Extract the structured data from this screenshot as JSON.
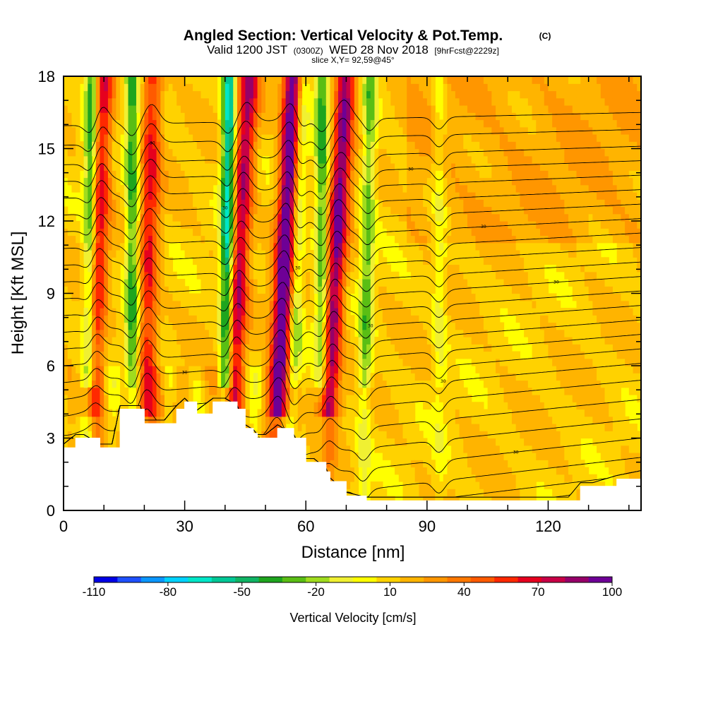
{
  "chart_data": {
    "type": "heatmap",
    "title": "Angled Section: Vertical Velocity & Pot.Temp.",
    "title_mark": "(C)",
    "subtitle_parts": [
      "Valid 1200 JST",
      "(0300Z)",
      "WED 28 Nov 2018",
      "[9hrFcst@2229z]"
    ],
    "slice_text": "slice X,Y= 92,59@45°",
    "xlabel": "Distance [nm]",
    "ylabel": "Height [Kft MSL]",
    "xlim": [
      0,
      143
    ],
    "ylim": [
      0,
      18
    ],
    "x_ticks": [
      "0",
      "30",
      "60",
      "90",
      "120"
    ],
    "x_tick_values": [
      0,
      30,
      60,
      90,
      120
    ],
    "y_ticks": [
      "0",
      "3",
      "6",
      "9",
      "12",
      "15",
      "18"
    ],
    "y_tick_values": [
      0,
      3,
      6,
      9,
      12,
      15,
      18
    ],
    "colorbar": {
      "label": "Vertical Velocity [cm/s]",
      "tick_labels": [
        "-110",
        "-80",
        "-50",
        "-20",
        "10",
        "40",
        "70",
        "100"
      ],
      "tick_values": [
        -110,
        -80,
        -50,
        -20,
        10,
        40,
        70,
        100
      ],
      "colors": [
        "#0000e6",
        "#1e50ff",
        "#0a96ff",
        "#00d2ff",
        "#00e6c8",
        "#00c896",
        "#0fb464",
        "#1ea51e",
        "#5abe14",
        "#a0dc1e",
        "#f0f032",
        "#ffff00",
        "#ffd200",
        "#ffb400",
        "#ff9600",
        "#ff7800",
        "#ff5a00",
        "#ff2800",
        "#e6001e",
        "#c80046",
        "#960069",
        "#6e0096"
      ]
    },
    "updraft_bands": [
      {
        "x_top": 10,
        "x_bottom": 6,
        "sign": "up",
        "peak": 60
      },
      {
        "x_top": 22,
        "x_bottom": 20,
        "sign": "up",
        "peak": 50
      },
      {
        "x_top": 46,
        "x_bottom": 40,
        "sign": "up",
        "peak": 70
      },
      {
        "x_top": 57,
        "x_bottom": 52,
        "sign": "up",
        "peak": 100
      },
      {
        "x_top": 70,
        "x_bottom": 64,
        "sign": "up",
        "peak": 80
      }
    ],
    "downdraft_bands": [
      {
        "x_top": 7,
        "x_bottom": 6,
        "peak": -60
      },
      {
        "x_top": 17,
        "x_bottom": 17,
        "peak": -50
      },
      {
        "x_top": 41,
        "x_bottom": 40,
        "peak": -80
      },
      {
        "x_top": 59,
        "x_bottom": 56,
        "peak": -40
      },
      {
        "x_top": 64,
        "x_bottom": 64,
        "peak": -50
      },
      {
        "x_top": 76,
        "x_bottom": 74,
        "peak": -40
      },
      {
        "x_top": 93,
        "x_bottom": 93,
        "peak": -20
      }
    ],
    "terrain": {
      "x": [
        0,
        3,
        5,
        9,
        12,
        14,
        19,
        20,
        25,
        28,
        30,
        33,
        37,
        40,
        43,
        45,
        47,
        48,
        50,
        53,
        57,
        60,
        62,
        65,
        66,
        70,
        75,
        80,
        90,
        100,
        110,
        113,
        125,
        128,
        131,
        137,
        143
      ],
      "kft": [
        2.6,
        3.0,
        3.0,
        2.6,
        2.6,
        4.2,
        4.2,
        3.6,
        3.6,
        4.2,
        4.5,
        4.0,
        4.5,
        4.5,
        4.2,
        3.4,
        3.2,
        3.0,
        3.0,
        3.4,
        3.0,
        2.0,
        2.0,
        1.6,
        1.2,
        0.6,
        0.4,
        0.4,
        0.4,
        0.4,
        0.4,
        0.4,
        0.4,
        1.0,
        1.0,
        1.3,
        1.5
      ]
    },
    "theta_contours": {
      "count": 26,
      "levels_kft_right": [
        0.5,
        1.0,
        1.5,
        2.2,
        3.0,
        3.8,
        4.6,
        5.4,
        6.1,
        6.7,
        7.3,
        7.9,
        8.5,
        9.1,
        9.7,
        10.3,
        10.9,
        11.5,
        12.1,
        12.7,
        13.3,
        13.9,
        14.5,
        15.1,
        15.8,
        16.5
      ],
      "label_text": "30"
    }
  }
}
